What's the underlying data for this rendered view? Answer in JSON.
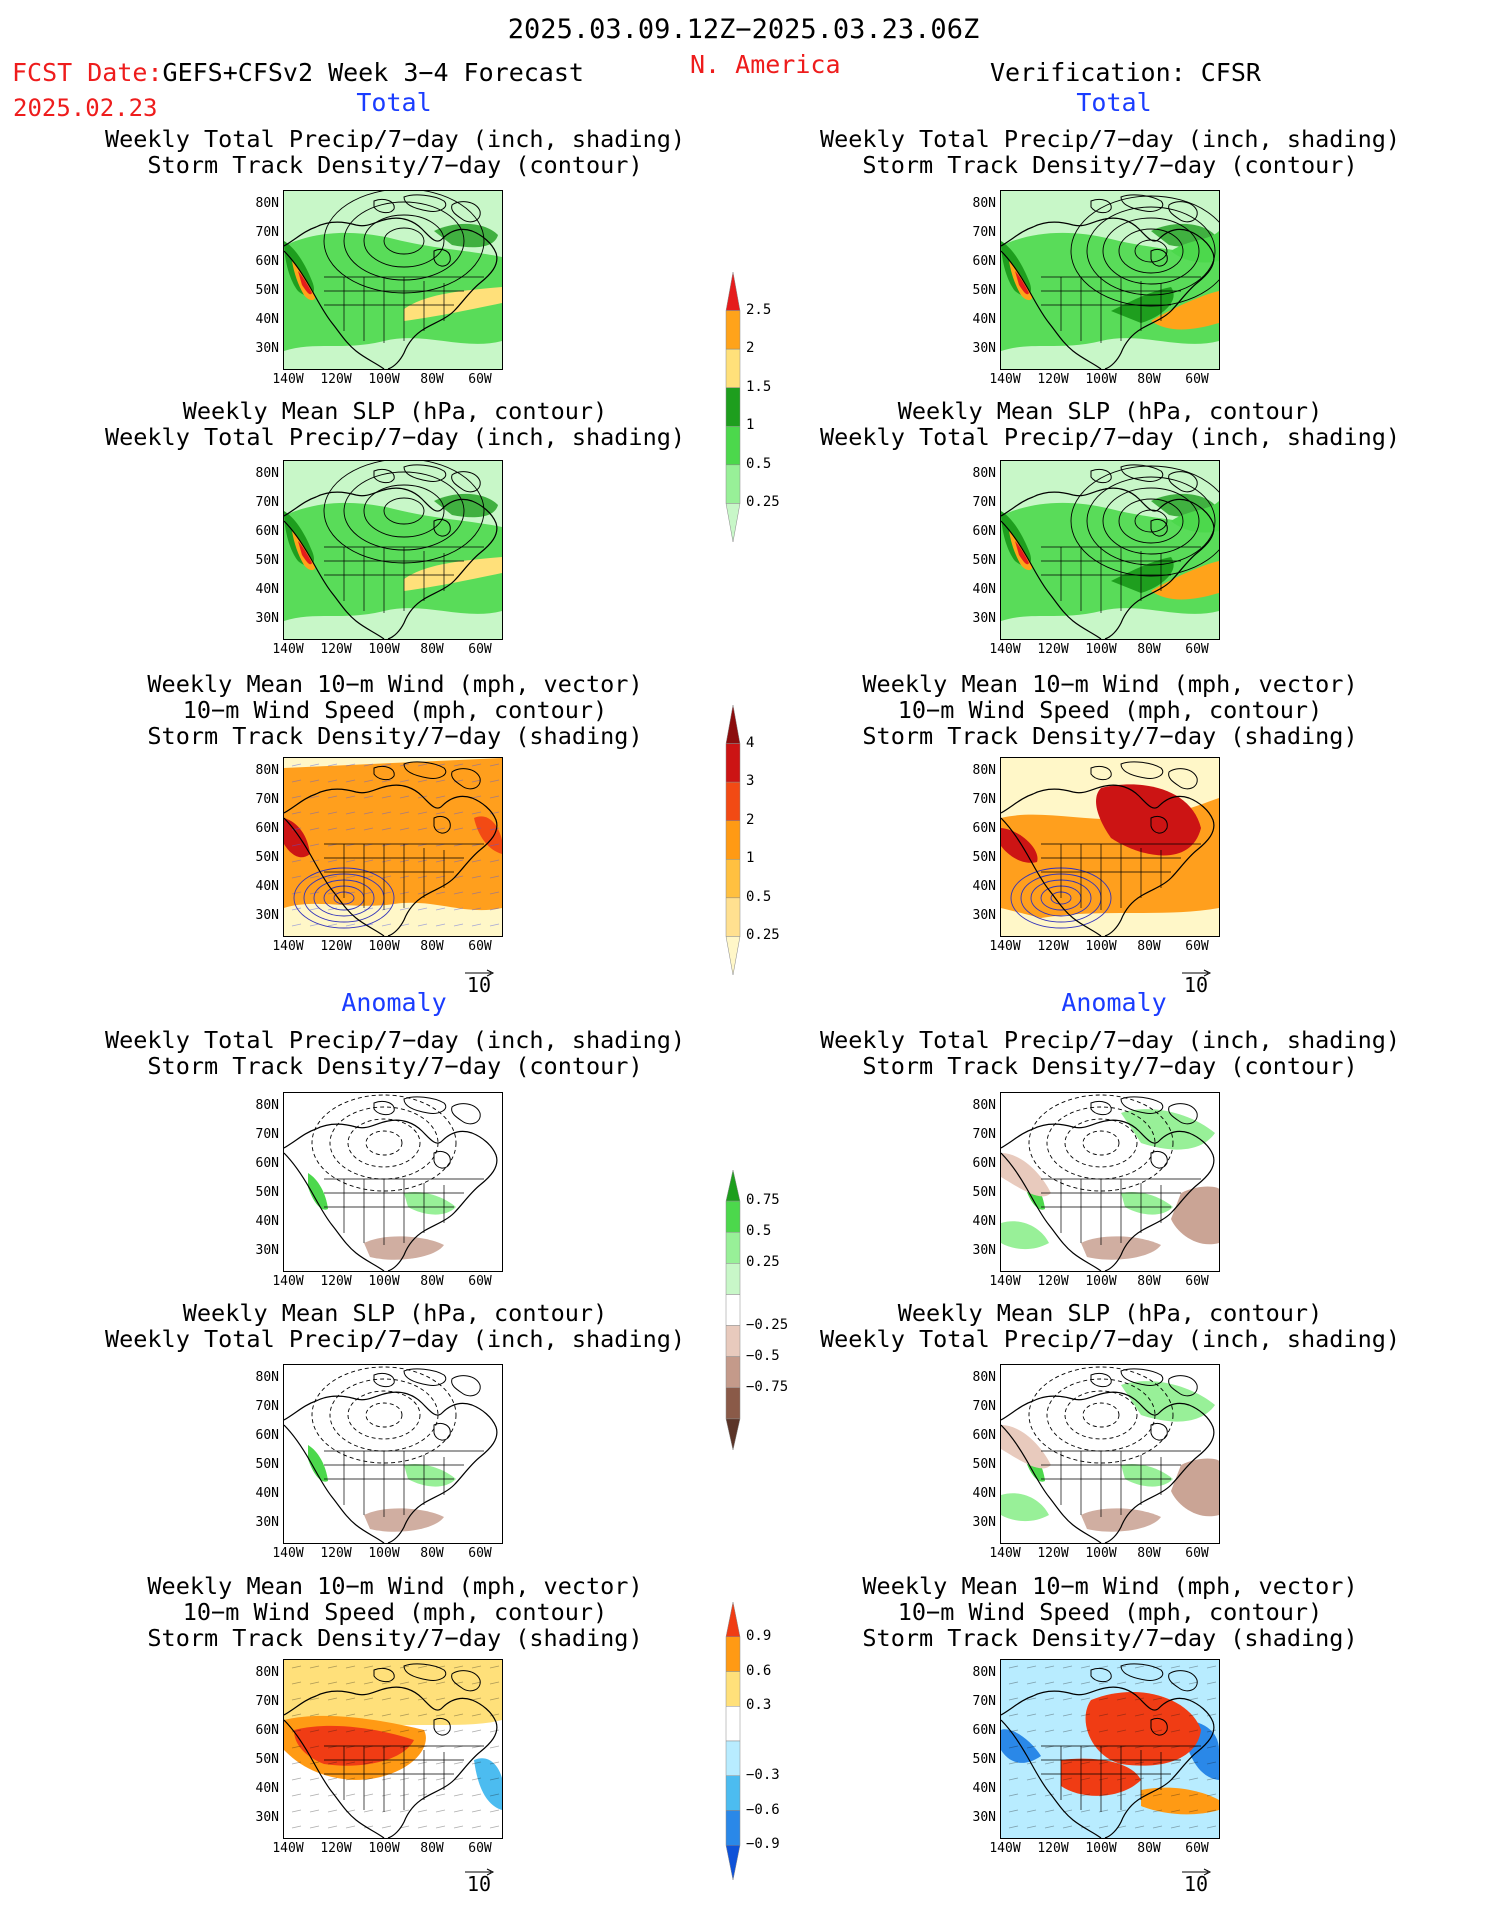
{
  "header": {
    "date_range": "2025.03.09.12Z−2025.03.23.06Z",
    "fcst_date_label": "FCST Date:",
    "forecast_name": "GEFS+CFSv2 Week 3−4 Forecast",
    "fcst_date": "2025.02.23",
    "region": "N. America",
    "verification": "Verification: CFSR"
  },
  "sections": {
    "total": "Total",
    "anomaly": "Anomaly"
  },
  "titles": {
    "p1": [
      "Weekly Total Precip/7−day (inch, shading)",
      "Storm Track Density/7−day (contour)"
    ],
    "p2": [
      "Weekly Mean SLP (hPa, contour)",
      "Weekly Total Precip/7−day (inch, shading)"
    ],
    "p3": [
      "Weekly Mean 10−m Wind (mph, vector)",
      "10−m Wind Speed (mph, contour)",
      "Storm Track Density/7−day (shading)"
    ]
  },
  "axes": {
    "lat": [
      "80N",
      "70N",
      "60N",
      "50N",
      "40N",
      "30N"
    ],
    "lon": [
      "140W",
      "120W",
      "100W",
      "80W",
      "60W"
    ]
  },
  "vector_ref": "10",
  "colorbars": {
    "precip": {
      "labels": [
        "2.5",
        "2",
        "1.5",
        "1",
        "0.5",
        "0.25"
      ],
      "colors": [
        "#e51c1c",
        "#ffa31a",
        "#ffe07a",
        "#1e9e1e",
        "#4cd84c",
        "#98f098",
        "#c8f7c8"
      ]
    },
    "track": {
      "labels": [
        "4",
        "3",
        "2",
        "1",
        "0.5",
        "0.25"
      ],
      "colors": [
        "#8b0d0d",
        "#cc1414",
        "#f24a14",
        "#ff9a14",
        "#ffc040",
        "#ffe090",
        "#fff7c8"
      ]
    },
    "precip_anom": {
      "labels": [
        "0.75",
        "0.5",
        "0.25",
        "−0.25",
        "−0.5",
        "−0.75"
      ],
      "colors": [
        "#1e9e1e",
        "#4cd84c",
        "#98f098",
        "#c8f7c8",
        "#ffffff",
        "#e8cabd",
        "#c49a8a",
        "#8a5a48",
        "#5a3428"
      ]
    },
    "track_anom": {
      "labels": [
        "0.9",
        "0.6",
        "0.3",
        "−0.3",
        "−0.6",
        "−0.9"
      ],
      "colors": [
        "#f03c14",
        "#ff9a14",
        "#ffe07a",
        "#ffffff",
        "#b8ecff",
        "#4cbcf0",
        "#2a88e8",
        "#0f52d8"
      ]
    }
  },
  "map_colors": {
    "ocean_precip": "#c8f7c8",
    "land_green": "#4cd84c",
    "dark_green": "#1e9e1e",
    "orange": "#ffa31a",
    "red": "#e51c1c",
    "yellow": "#ffe07a",
    "track_orange": "#ff9a14",
    "track_dark": "#cc1414",
    "brown": "#c49a8a",
    "blue_anom": "#4cbcf0"
  }
}
